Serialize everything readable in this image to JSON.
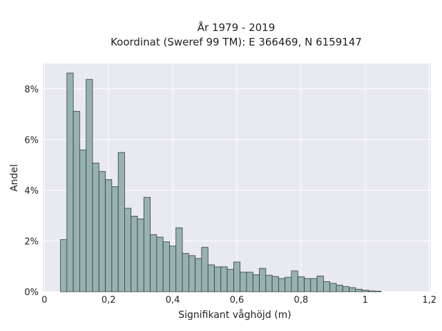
{
  "chart_data": {
    "type": "bar",
    "title_line1": "År 1979 - 2019",
    "title_line2": "Koordinat (Sweref 99 TM): E 366469, N 6159147",
    "xlabel": "Signifikant våghöjd (m)",
    "ylabel": "Andel",
    "xlim": [
      -0.005,
      1.205
    ],
    "ylim": [
      0,
      9.0
    ],
    "x_ticks": [
      0,
      0.2,
      0.4,
      0.6,
      0.8,
      1.0,
      1.2
    ],
    "x_tick_labels": [
      "0",
      "0,2",
      "0,4",
      "0,6",
      "0,8",
      "1",
      "1,2"
    ],
    "y_ticks": [
      0,
      2,
      4,
      6,
      8
    ],
    "y_tick_labels": [
      "0%",
      "2%",
      "4%",
      "6%",
      "8%"
    ],
    "grid": true,
    "bin_start": 0.05,
    "bin_width": 0.02,
    "values": [
      2.05,
      8.62,
      7.11,
      5.59,
      8.37,
      5.07,
      4.74,
      4.42,
      4.14,
      5.49,
      3.29,
      2.98,
      2.87,
      3.72,
      2.25,
      2.15,
      1.97,
      1.8,
      2.52,
      1.51,
      1.42,
      1.31,
      1.75,
      1.06,
      0.98,
      0.98,
      0.88,
      1.17,
      0.77,
      0.77,
      0.67,
      0.92,
      0.65,
      0.6,
      0.52,
      0.57,
      0.82,
      0.59,
      0.52,
      0.52,
      0.62,
      0.4,
      0.33,
      0.26,
      0.2,
      0.16,
      0.1,
      0.06,
      0.03,
      0.02
    ],
    "colors": {
      "bar_fill": "#98b1b1",
      "bar_edge": "#2e3e3e",
      "plot_background": "#e9e9f1",
      "grid": "#ffffff",
      "text": "#222222"
    }
  }
}
